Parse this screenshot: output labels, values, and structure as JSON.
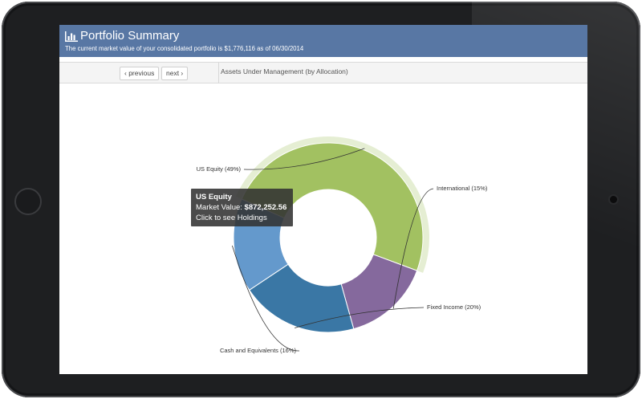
{
  "header": {
    "title": "Portfolio Summary",
    "subtitle": "The current market value of your consolidated portfolio is $1,776,116 as of 06/30/2014",
    "icon": "bar-chart-icon"
  },
  "toolbar": {
    "previous_label": "‹ previous",
    "next_label": "next ›",
    "chart_heading": "Assets Under Management (by Allocation)"
  },
  "chart_data": {
    "type": "pie",
    "donut": true,
    "title": "Assets Under Management (by Allocation)",
    "slices": [
      {
        "name": "US Equity",
        "value": 49,
        "label": "US Equity (49%)",
        "color": "#a2c161",
        "highlighted": true
      },
      {
        "name": "International",
        "value": 15,
        "label": "International (15%)",
        "color": "#85699d"
      },
      {
        "name": "Fixed Income",
        "value": 20,
        "label": "Fixed Income (20%)",
        "color": "#3a77a5"
      },
      {
        "name": "Cash and Equivalents",
        "value": 16,
        "label": "Cash and Equivalents (16%)",
        "color": "#6499cc"
      }
    ]
  },
  "tooltip": {
    "title": "US Equity",
    "value_prefix": "Market Value: ",
    "value": "$872,252.56",
    "action": "Click to see Holdings"
  }
}
